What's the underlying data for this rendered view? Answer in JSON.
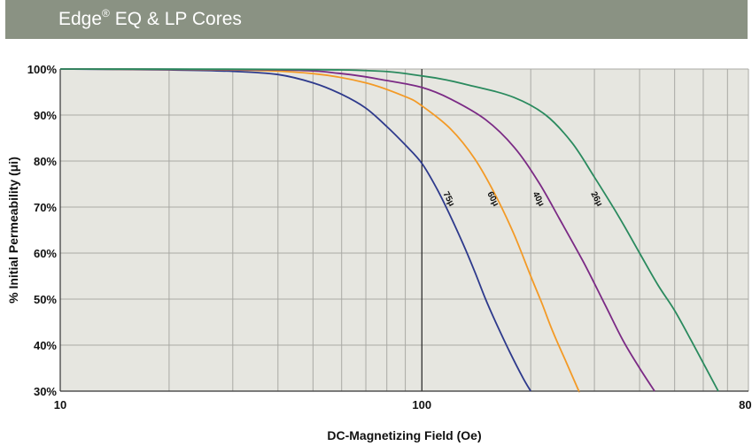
{
  "header": {
    "title_main": "Edge",
    "title_mark": "®",
    "title_rest": " EQ & LP Cores"
  },
  "colors": {
    "header_bg": "#8a9283",
    "plot_bg": "#e6e6e0",
    "grid": "#a9a9a4"
  },
  "chart_data": {
    "type": "line",
    "xlabel": "DC-Magnetizing Field (Oe)",
    "ylabel": "% Initial Permeability (μi)",
    "x_scale": "log",
    "xlim": [
      10,
      800
    ],
    "ylim": [
      30,
      100
    ],
    "x_ticks": [
      {
        "value": 10,
        "label": "10"
      },
      {
        "value": 100,
        "label": "100"
      },
      {
        "value": 800,
        "label": "800"
      }
    ],
    "y_ticks": [
      {
        "value": 30,
        "label": "30%"
      },
      {
        "value": 40,
        "label": "40%"
      },
      {
        "value": 50,
        "label": "50%"
      },
      {
        "value": 60,
        "label": "60%"
      },
      {
        "value": 70,
        "label": "70%"
      },
      {
        "value": 80,
        "label": "80%"
      },
      {
        "value": 90,
        "label": "90%"
      },
      {
        "value": 100,
        "label": "100%"
      }
    ],
    "grid": true,
    "series": [
      {
        "name": "75μ",
        "color": "#2e3a8c",
        "label_at": {
          "x": 117,
          "y": 71.5
        },
        "points": [
          [
            10,
            100
          ],
          [
            20,
            99.8
          ],
          [
            30,
            99.5
          ],
          [
            40,
            98.8
          ],
          [
            50,
            97
          ],
          [
            60,
            94.5
          ],
          [
            70,
            91.5
          ],
          [
            80,
            87.5
          ],
          [
            90,
            83.5
          ],
          [
            100,
            79.5
          ],
          [
            110,
            74
          ],
          [
            120,
            68
          ],
          [
            130,
            62
          ],
          [
            140,
            56
          ],
          [
            150,
            50
          ],
          [
            160,
            45
          ],
          [
            175,
            38.5
          ],
          [
            190,
            33
          ],
          [
            200,
            30
          ]
        ]
      },
      {
        "name": "60μ",
        "color": "#f39a26",
        "label_at": {
          "x": 155,
          "y": 71.5
        },
        "points": [
          [
            10,
            100
          ],
          [
            30,
            99.8
          ],
          [
            50,
            99
          ],
          [
            70,
            97
          ],
          [
            90,
            94
          ],
          [
            100,
            92
          ],
          [
            120,
            87
          ],
          [
            140,
            80.5
          ],
          [
            160,
            72.5
          ],
          [
            180,
            64
          ],
          [
            200,
            55
          ],
          [
            215,
            49
          ],
          [
            230,
            43
          ],
          [
            250,
            36.5
          ],
          [
            270,
            30.5
          ],
          [
            272,
            30
          ]
        ]
      },
      {
        "name": "40μ",
        "color": "#7b2a85",
        "label_at": {
          "x": 207,
          "y": 71.5
        },
        "points": [
          [
            10,
            100
          ],
          [
            40,
            99.8
          ],
          [
            60,
            99
          ],
          [
            80,
            97.5
          ],
          [
            100,
            96
          ],
          [
            120,
            93.5
          ],
          [
            150,
            89
          ],
          [
            180,
            83
          ],
          [
            210,
            75.5
          ],
          [
            240,
            67.5
          ],
          [
            280,
            58
          ],
          [
            320,
            49
          ],
          [
            360,
            41
          ],
          [
            400,
            35
          ],
          [
            440,
            30
          ]
        ]
      },
      {
        "name": "26μ",
        "color": "#2a8a5e",
        "label_at": {
          "x": 300,
          "y": 71.5
        },
        "points": [
          [
            10,
            100
          ],
          [
            60,
            99.8
          ],
          [
            100,
            98.5
          ],
          [
            140,
            96.2
          ],
          [
            180,
            93.8
          ],
          [
            220,
            90
          ],
          [
            260,
            84
          ],
          [
            300,
            76.5
          ],
          [
            350,
            68
          ],
          [
            400,
            60
          ],
          [
            450,
            53
          ],
          [
            500,
            47.5
          ],
          [
            560,
            40.5
          ],
          [
            620,
            34
          ],
          [
            660,
            30
          ]
        ]
      }
    ]
  }
}
